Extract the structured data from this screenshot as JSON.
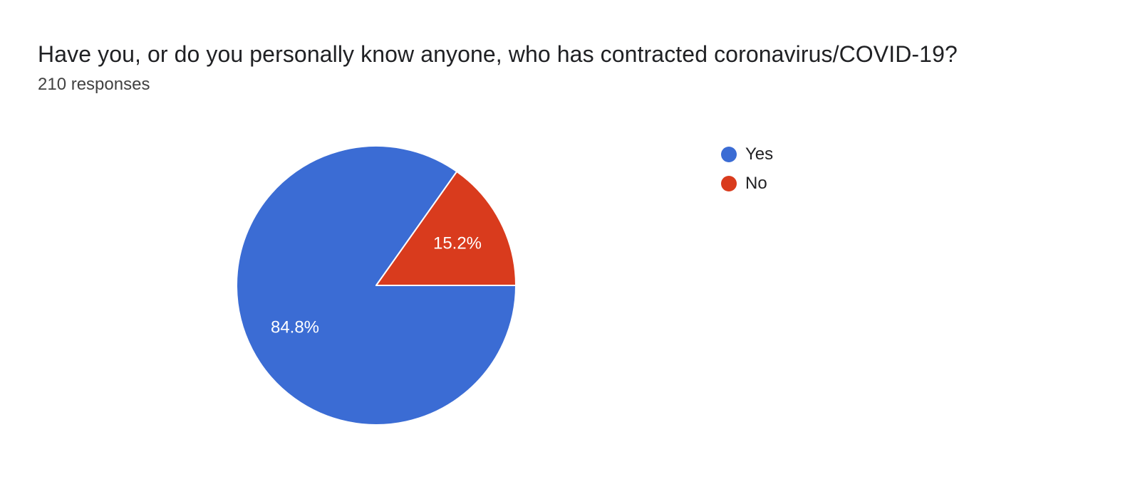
{
  "header": {
    "title": "Have you, or do you personally know anyone, who has contracted coronavirus/COVID-19?",
    "responses_label": "210 responses"
  },
  "chart_data": {
    "type": "pie",
    "title": "Have you, or do you personally know anyone, who has contracted coronavirus/COVID-19?",
    "subtitle": "210 responses",
    "labels": [
      "Yes",
      "No"
    ],
    "values": [
      84.8,
      15.2
    ],
    "slice_labels": [
      "84.8%",
      "15.2%"
    ],
    "unit": "%",
    "colors": [
      "#3b6cd4",
      "#d93b1d"
    ],
    "slice_label_color": "#ffffff",
    "separator_color": "#ffffff",
    "start_angle_deg": 90,
    "direction": "clockwise",
    "legend_position": "right",
    "legend_text_color": "#212124"
  }
}
